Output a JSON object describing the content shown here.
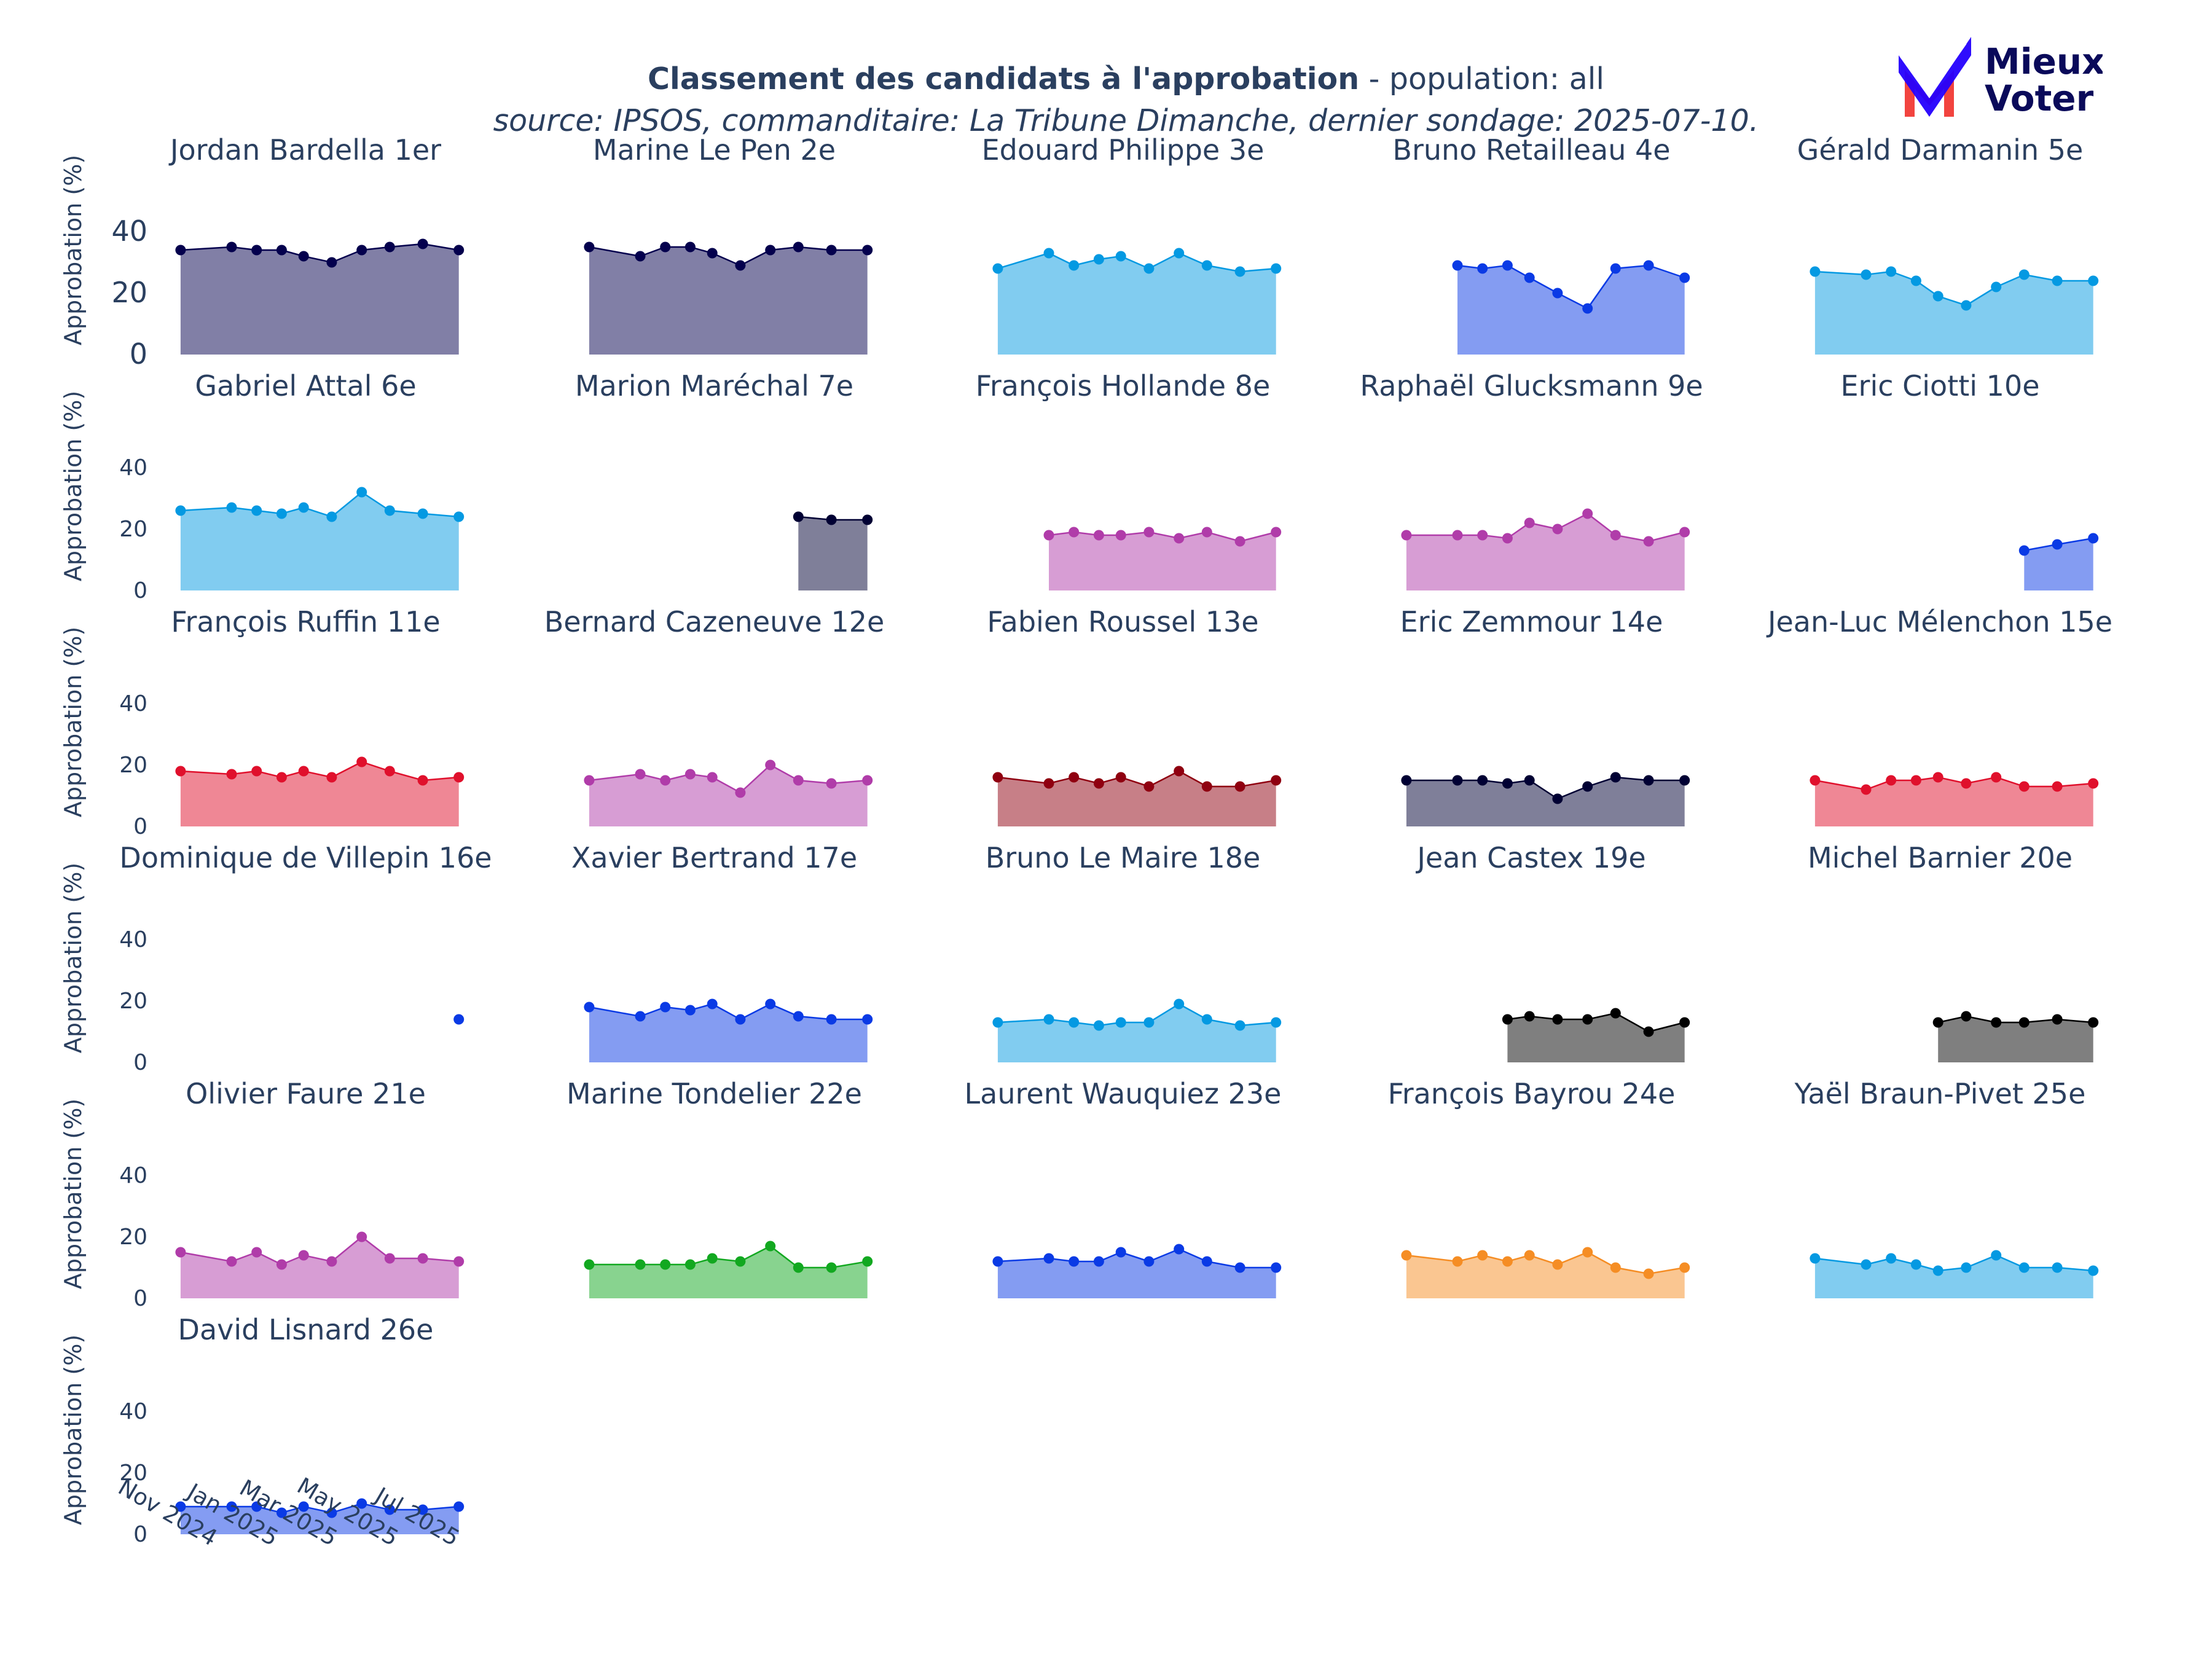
{
  "header": {
    "title_main": "Classement des candidats à l'approbation",
    "title_suffix": " - population: all",
    "subtitle": "source: IPSOS, commanditaire: La Tribune Dimanche, dernier sondage: 2025-07-10."
  },
  "logo": {
    "line1": "Mieux",
    "line2": "Voter",
    "colors": {
      "check": "#2400fd",
      "m_red": "#f2443f",
      "text": "#0a0a5a"
    }
  },
  "chart_data": {
    "type": "area",
    "layout": "small-multiples",
    "ylabel": "Approbation (%)",
    "ylim": [
      0,
      50
    ],
    "yticks": [
      0,
      20,
      40
    ],
    "xlim": [
      "2024-09-05",
      "2025-07-12"
    ],
    "xticks": [
      "2024-11-01",
      "2025-01-01",
      "2025-03-01",
      "2025-05-01",
      "2025-07-01"
    ],
    "xtick_labels": [
      "Nov 2024",
      "Jan 2025",
      "Mar 2025",
      "May 2025",
      "Jul 2025"
    ],
    "dates": [
      "2024-09-05",
      "2024-09-20",
      "2024-10-05",
      "2024-11-25",
      "2024-12-20",
      "2025-01-14",
      "2025-02-05",
      "2025-03-05",
      "2025-04-04",
      "2025-05-02",
      "2025-06-04",
      "2025-07-10"
    ],
    "panels": [
      {
        "name": "Jordan Bardella",
        "rank": "1er",
        "color": "#04004d",
        "values": [
          34,
          35,
          34,
          34,
          32,
          30,
          34,
          35,
          36,
          34
        ]
      },
      {
        "name": "Marine Le Pen",
        "rank": "2e",
        "color": "#04004d",
        "values": [
          35,
          32,
          35,
          35,
          33,
          29,
          34,
          35,
          34,
          34
        ]
      },
      {
        "name": "Edouard Philippe",
        "rank": "3e",
        "color": "#0499e2",
        "values": [
          28,
          33,
          29,
          31,
          32,
          28,
          33,
          29,
          27,
          28
        ]
      },
      {
        "name": "Bruno Retailleau",
        "rank": "4e",
        "color": "#0a3ae5",
        "values": [
          29,
          28,
          29,
          25,
          20,
          15,
          28,
          29,
          25
        ]
      },
      {
        "name": "Gérald Darmanin",
        "rank": "5e",
        "color": "#0499e2",
        "values": [
          27,
          26,
          27,
          24,
          19,
          16,
          22,
          26,
          24,
          24
        ]
      },
      {
        "name": "Gabriel Attal",
        "rank": "6e",
        "color": "#0499e2",
        "values": [
          26,
          27,
          26,
          25,
          27,
          24,
          32,
          26,
          25,
          24
        ]
      },
      {
        "name": "Marion Maréchal",
        "rank": "7e",
        "color": "#000033",
        "values": [
          24,
          23,
          23
        ]
      },
      {
        "name": "François Hollande",
        "rank": "8e",
        "color": "#b03ca9",
        "values": [
          18,
          19,
          18,
          18,
          19,
          17,
          19,
          16,
          19
        ]
      },
      {
        "name": "Raphaël Glucksmann",
        "rank": "9e",
        "color": "#b03ca9",
        "values": [
          18,
          18,
          18,
          17,
          22,
          20,
          25,
          18,
          16,
          19
        ]
      },
      {
        "name": "Eric Ciotti",
        "rank": "10e",
        "color": "#0a3ae5",
        "values": [
          13,
          15,
          17
        ]
      },
      {
        "name": "François Ruffin",
        "rank": "11e",
        "color": "#e0102c",
        "values": [
          18,
          17,
          18,
          16,
          18,
          16,
          21,
          18,
          15,
          16
        ]
      },
      {
        "name": "Bernard Cazeneuve",
        "rank": "12e",
        "color": "#b03ca9",
        "values": [
          15,
          17,
          15,
          17,
          16,
          11,
          20,
          15,
          14,
          15
        ]
      },
      {
        "name": "Fabien Roussel",
        "rank": "13e",
        "color": "#8f0010",
        "values": [
          16,
          14,
          16,
          14,
          16,
          13,
          18,
          13,
          13,
          15
        ]
      },
      {
        "name": "Eric Zemmour",
        "rank": "14e",
        "color": "#000033",
        "values": [
          15,
          15,
          15,
          14,
          15,
          9,
          13,
          16,
          15,
          15
        ]
      },
      {
        "name": "Jean-Luc Mélenchon",
        "rank": "15e",
        "color": "#e0102c",
        "values": [
          15,
          12,
          15,
          15,
          16,
          14,
          16,
          13,
          13,
          14
        ]
      },
      {
        "name": "Dominique de Villepin",
        "rank": "16e",
        "color": "#0a3ae5",
        "values": [
          14
        ]
      },
      {
        "name": "Xavier Bertrand",
        "rank": "17e",
        "color": "#0a3ae5",
        "values": [
          18,
          15,
          18,
          17,
          19,
          14,
          19,
          15,
          14,
          14
        ]
      },
      {
        "name": "Bruno Le Maire",
        "rank": "18e",
        "color": "#0499e2",
        "values": [
          13,
          14,
          13,
          12,
          13,
          13,
          19,
          14,
          12,
          13
        ]
      },
      {
        "name": "Jean Castex",
        "rank": "19e",
        "color": "#000000",
        "values": [
          14,
          15,
          14,
          14,
          16,
          10,
          13
        ]
      },
      {
        "name": "Michel Barnier",
        "rank": "20e",
        "color": "#000000",
        "values": [
          13,
          15,
          13,
          13,
          14,
          13
        ]
      },
      {
        "name": "Olivier Faure",
        "rank": "21e",
        "color": "#b03ca9",
        "values": [
          15,
          12,
          15,
          11,
          14,
          12,
          20,
          13,
          13,
          12
        ]
      },
      {
        "name": "Marine Tondelier",
        "rank": "22e",
        "color": "#12a820",
        "values": [
          11,
          11,
          11,
          11,
          13,
          12,
          17,
          10,
          10,
          12
        ]
      },
      {
        "name": "Laurent Wauquiez",
        "rank": "23e",
        "color": "#0a3ae5",
        "values": [
          12,
          13,
          12,
          12,
          15,
          12,
          16,
          12,
          10,
          10
        ]
      },
      {
        "name": "François Bayrou",
        "rank": "24e",
        "color": "#f58d24",
        "values": [
          14,
          12,
          14,
          12,
          14,
          11,
          15,
          10,
          8,
          10
        ]
      },
      {
        "name": "Yaël Braun-Pivet",
        "rank": "25e",
        "color": "#0499e2",
        "values": [
          13,
          11,
          13,
          11,
          9,
          10,
          14,
          10,
          10,
          9
        ]
      },
      {
        "name": "David Lisnard",
        "rank": "26e",
        "color": "#0a3ae5",
        "values": [
          9,
          9,
          9,
          7,
          9,
          7,
          10,
          8,
          8,
          9
        ]
      }
    ]
  }
}
